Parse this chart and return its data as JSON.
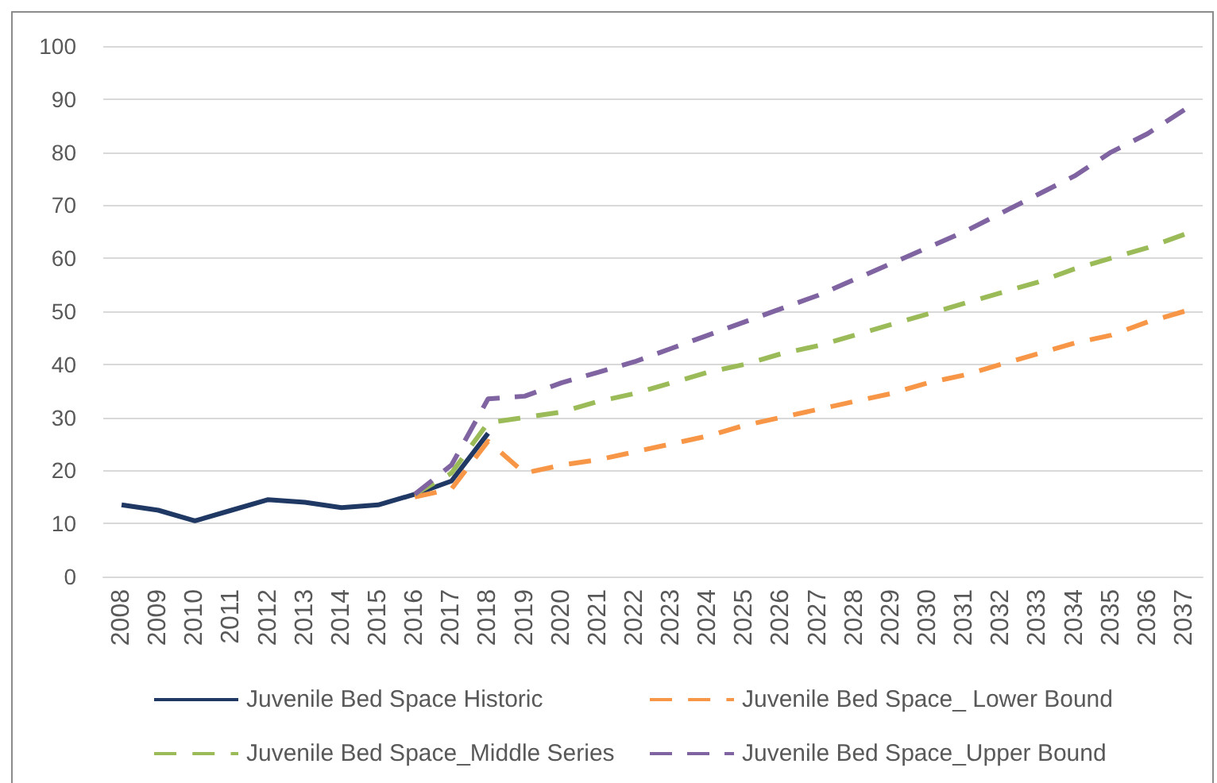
{
  "chart_data": {
    "type": "line",
    "categories": [
      "2008",
      "2009",
      "2010",
      "2011",
      "2012",
      "2013",
      "2014",
      "2015",
      "2016",
      "2017",
      "2018",
      "2019",
      "2020",
      "2021",
      "2022",
      "2023",
      "2024",
      "2025",
      "2026",
      "2027",
      "2028",
      "2029",
      "2030",
      "2031",
      "2032",
      "2033",
      "2034",
      "2035",
      "2036",
      "2037"
    ],
    "series": [
      {
        "name": "Juvenile Bed Space Historic",
        "color": "#1f3864",
        "line_style": "solid",
        "values": [
          13.5,
          12.5,
          10.5,
          12.5,
          14.5,
          14,
          13,
          13.5,
          15.5,
          18,
          27,
          null,
          null,
          null,
          null,
          null,
          null,
          null,
          null,
          null,
          null,
          null,
          null,
          null,
          null,
          null,
          null,
          null,
          null,
          null
        ]
      },
      {
        "name": "Juvenile Bed Space_ Lower Bound",
        "color": "#f79646",
        "line_style": "dashed",
        "values": [
          null,
          null,
          null,
          null,
          null,
          null,
          null,
          null,
          15,
          16.5,
          25.5,
          19.5,
          21,
          22,
          23.5,
          25,
          26.5,
          28.5,
          30,
          31.5,
          33,
          34.5,
          36.5,
          38,
          40,
          42,
          44,
          45.5,
          48,
          50
        ]
      },
      {
        "name": "Juvenile Bed Space_Middle Series",
        "color": "#9bbb59",
        "line_style": "dashed",
        "values": [
          null,
          null,
          null,
          null,
          null,
          null,
          null,
          null,
          15.5,
          19.5,
          29,
          30,
          31,
          33,
          34.5,
          36.5,
          38.5,
          40,
          42,
          43.5,
          45.5,
          47.5,
          49.5,
          51.5,
          53.5,
          55.5,
          58,
          60,
          62,
          64.5
        ]
      },
      {
        "name": "Juvenile Bed Space_Upper Bound",
        "color": "#8064a2",
        "line_style": "dashed",
        "values": [
          null,
          null,
          null,
          null,
          null,
          null,
          null,
          null,
          15.5,
          21,
          33.5,
          34,
          36.5,
          38.5,
          40.5,
          43,
          45.5,
          48,
          50.5,
          53,
          56,
          59,
          62,
          65,
          68.5,
          72,
          75.5,
          80,
          83.5,
          88
        ]
      }
    ],
    "ylim": [
      0,
      100
    ],
    "yticks": [
      0,
      10,
      20,
      30,
      40,
      50,
      60,
      70,
      80,
      90,
      100
    ],
    "grid": "y",
    "legend": "bottom",
    "marker": "none"
  }
}
